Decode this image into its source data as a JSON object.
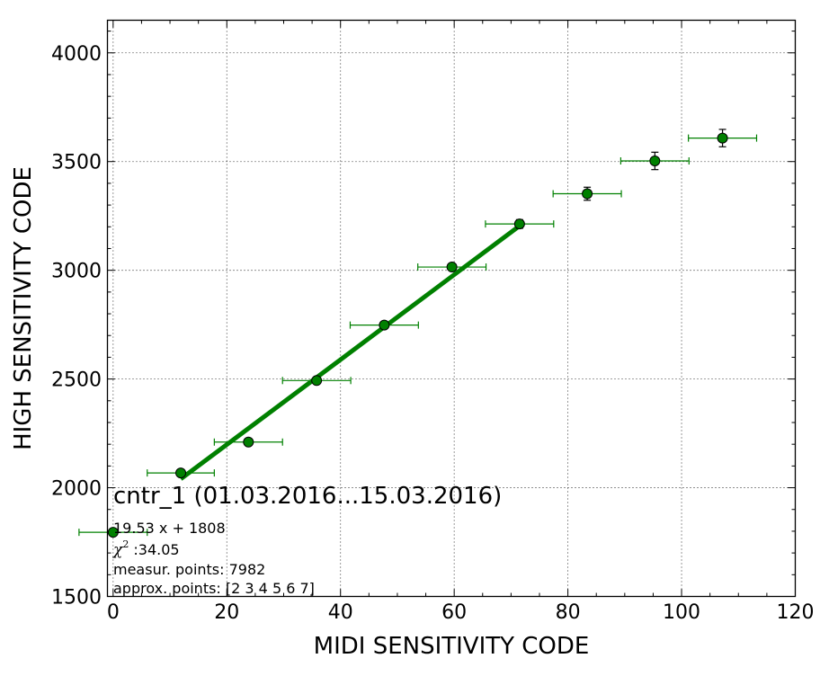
{
  "chart_data": {
    "type": "scatter",
    "xlabel": "MIDI SENSITIVITY CODE",
    "ylabel": "HIGH SENSITIVITY CODE",
    "xlim": [
      -1,
      120
    ],
    "ylim": [
      1500,
      4150
    ],
    "x_ticks": [
      0,
      20,
      40,
      60,
      80,
      100,
      120
    ],
    "y_ticks": [
      1500,
      2000,
      2500,
      3000,
      3500,
      4000
    ],
    "x_tick_labels": [
      "0",
      "20",
      "40",
      "60",
      "80",
      "100",
      "120"
    ],
    "y_tick_labels": [
      "1500",
      "2000",
      "2500",
      "3000",
      "3500",
      "4000"
    ],
    "grid": true,
    "colors": {
      "series": "#008000",
      "marker_edge": "#000000"
    },
    "points": [
      {
        "x": 0,
        "y": 1795,
        "xerr": 6.0,
        "yerr": 10
      },
      {
        "x": 11.9,
        "y": 2068,
        "xerr": 5.9,
        "yerr": 10
      },
      {
        "x": 23.8,
        "y": 2210,
        "xerr": 6.0,
        "yerr": 10
      },
      {
        "x": 35.8,
        "y": 2493,
        "xerr": 6.0,
        "yerr": 10
      },
      {
        "x": 47.7,
        "y": 2748,
        "xerr": 6.0,
        "yerr": 10
      },
      {
        "x": 59.6,
        "y": 3015,
        "xerr": 6.0,
        "yerr": 15
      },
      {
        "x": 71.5,
        "y": 3213,
        "xerr": 6.0,
        "yerr": 20
      },
      {
        "x": 83.4,
        "y": 3352,
        "xerr": 6.0,
        "yerr": 30
      },
      {
        "x": 95.3,
        "y": 3503,
        "xerr": 6.0,
        "yerr": 40
      },
      {
        "x": 107.2,
        "y": 3608,
        "xerr": 6.0,
        "yerr": 40
      }
    ],
    "fit": {
      "slope": 19.53,
      "intercept": 1808,
      "x_range": [
        11.9,
        71.5
      ]
    },
    "title": "cntr_1 (01.03.2016...15.03.2016)",
    "annotations": {
      "equation": "19.53 x + 1808",
      "chi2_label": "χ",
      "chi2_superscript": "2",
      "chi2_value": " :34.05",
      "measur_points": "measur. points: 7982",
      "approx_points": "approx. points: [2 3 4 5 6 7]"
    }
  }
}
